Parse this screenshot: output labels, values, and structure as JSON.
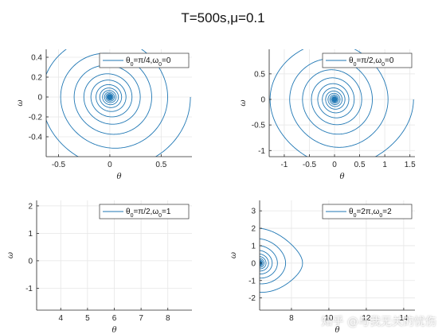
{
  "figure": {
    "title": "T=500s,μ=0.1",
    "watermark": "知乎 @与我无关的忧伤"
  },
  "colors": {
    "line": "#1f77b4",
    "grid": "#e6e6e6",
    "axis": "#262626"
  },
  "chart_data": [
    {
      "type": "line",
      "panel": "top-left",
      "xlabel": "θ",
      "ylabel": "ω",
      "xlim": [
        -0.62,
        0.8
      ],
      "ylim": [
        -0.6,
        0.48
      ],
      "xticks": [
        -0.5,
        0,
        0.5
      ],
      "xtick_labels": [
        "-0.5",
        "0",
        "0.5"
      ],
      "yticks": [
        -0.4,
        -0.2,
        0,
        0.2,
        0.4
      ],
      "ytick_labels": [
        "-0.4",
        "-0.2",
        "0",
        "0.2",
        "0.4"
      ],
      "grid": true,
      "legend": "top-right",
      "series": [
        {
          "name": "θ_0=π/4,ω_0=0",
          "theta0": 0.785,
          "omega0": 0,
          "mu": 0.1,
          "center": 0,
          "x_scale": 1,
          "y_scale": 1
        }
      ]
    },
    {
      "type": "line",
      "panel": "top-right",
      "xlabel": "θ",
      "ylabel": "ω",
      "xlim": [
        -1.3,
        1.6
      ],
      "ylim": [
        -1.12,
        0.98
      ],
      "xticks": [
        -1,
        -0.5,
        0,
        0.5,
        1,
        1.5
      ],
      "xtick_labels": [
        "-1",
        "-0.5",
        "0",
        "0.5",
        "1",
        "1.5"
      ],
      "yticks": [
        -1,
        -0.5,
        0,
        0.5
      ],
      "ytick_labels": [
        "-1",
        "-0.5",
        "0",
        "0.5"
      ],
      "grid": true,
      "legend": "top-right",
      "series": [
        {
          "name": "θ_0=π/2,ω_0=0",
          "theta0": 1.571,
          "omega0": 0,
          "mu": 0.1,
          "center": 0,
          "x_scale": 1,
          "y_scale": 1
        }
      ]
    },
    {
      "type": "line",
      "panel": "bottom-left",
      "xlabel": "θ",
      "ylabel": "ω",
      "xlim": [
        3.1,
        8.9
      ],
      "ylim": [
        -1.8,
        2.2
      ],
      "xticks": [
        4,
        5,
        6,
        7,
        8
      ],
      "xtick_labels": [
        "4",
        "5",
        "6",
        "7",
        "8"
      ],
      "yticks": [
        -1,
        0,
        1,
        2
      ],
      "ytick_labels": [
        "-1",
        "0",
        "1",
        "2"
      ],
      "grid": true,
      "legend": "top-right",
      "series": [
        {
          "name": "θ_0=π/2,ω_0=1",
          "theta0": 1.571,
          "omega0": 1,
          "mu": 0.1,
          "center": 6.2832,
          "x_scale": 1,
          "y_scale": 1
        }
      ]
    },
    {
      "type": "line",
      "panel": "bottom-right",
      "xlabel": "θ",
      "ylabel": "ω",
      "xlim": [
        6.3,
        14.6
      ],
      "ylim": [
        -2.7,
        3.6
      ],
      "xticks": [
        8,
        10,
        12,
        14
      ],
      "xtick_labels": [
        "8",
        "10",
        "12",
        "14"
      ],
      "yticks": [
        -2,
        -1,
        0,
        1,
        2,
        3
      ],
      "ytick_labels": [
        "-2",
        "-1",
        "0",
        "1",
        "2",
        "3"
      ],
      "grid": true,
      "legend": "top-right",
      "series": [
        {
          "name": "θ_0=2π,ω_0=2",
          "theta0": 6.283,
          "omega0": 2,
          "mu": 0.1,
          "center": 12.566,
          "x_scale": 1,
          "y_scale": 1
        }
      ]
    }
  ]
}
